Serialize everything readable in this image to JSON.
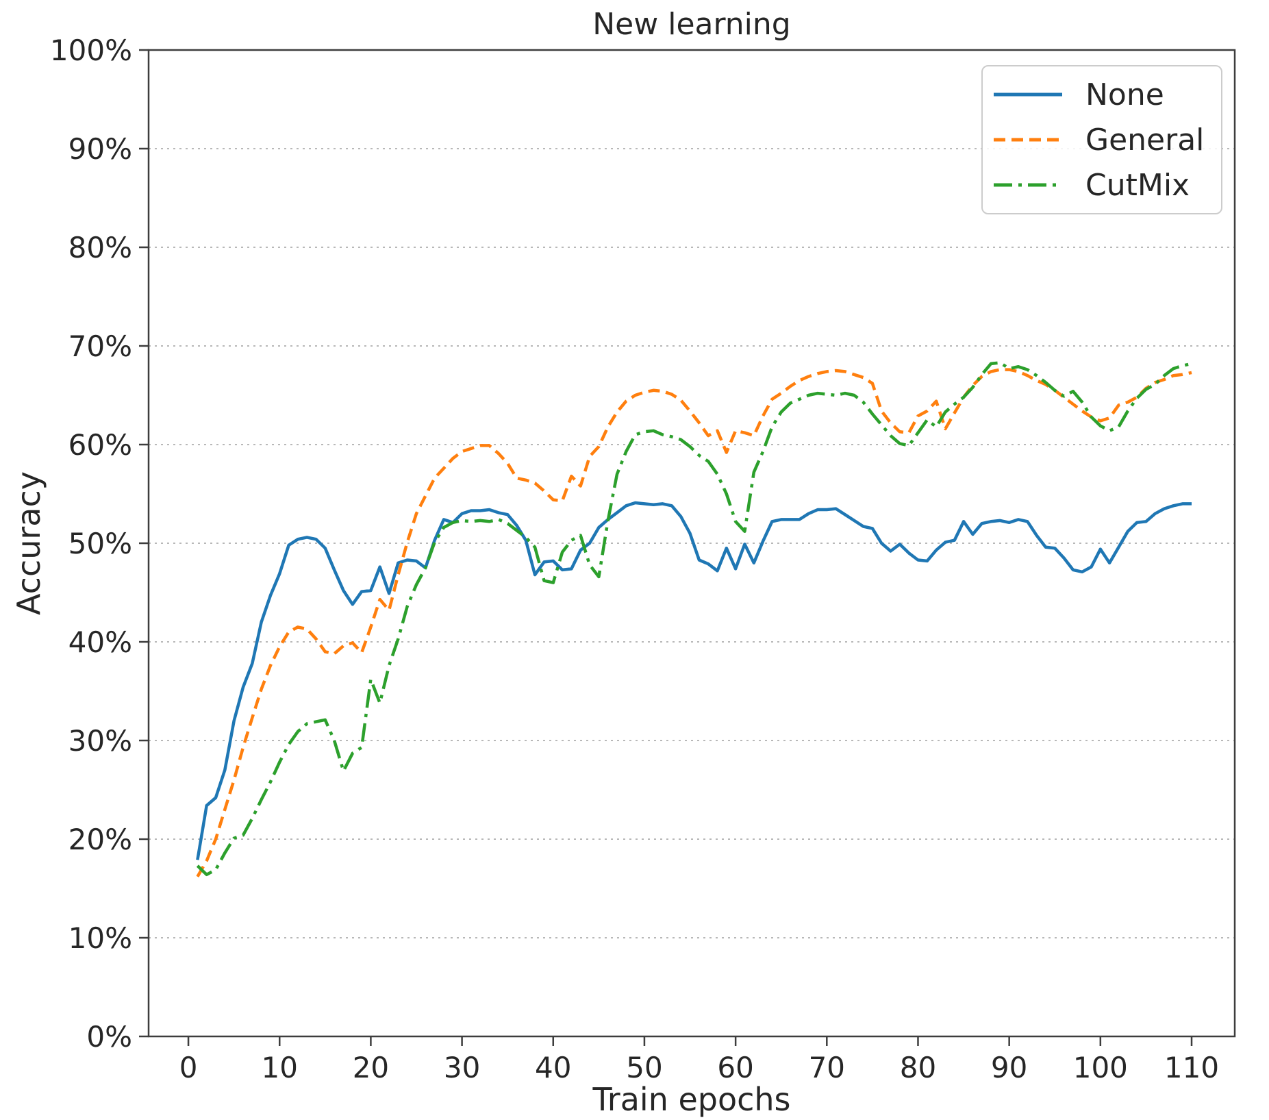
{
  "chart_data": {
    "type": "line",
    "title": "New learning",
    "xlabel": "Train epochs",
    "ylabel": "Accuracy",
    "xlim": [
      -4.36,
      114.73
    ],
    "ylim": [
      0,
      100
    ],
    "x_ticks": [
      0,
      10,
      20,
      30,
      40,
      50,
      60,
      70,
      80,
      90,
      100,
      110
    ],
    "x_tick_labels": [
      "0",
      "10",
      "20",
      "30",
      "40",
      "50",
      "60",
      "70",
      "80",
      "90",
      "100",
      "110"
    ],
    "y_ticks": [
      0,
      10,
      20,
      30,
      40,
      50,
      60,
      70,
      80,
      90,
      100
    ],
    "y_tick_labels": [
      "0%",
      "10%",
      "20%",
      "30%",
      "40%",
      "50%",
      "60%",
      "70%",
      "80%",
      "90%",
      "100%"
    ],
    "grid": "horizontal-dotted",
    "grid_color": "#b8b8b8",
    "axis_color": "#3d3d3d",
    "text_color": "#262626",
    "legend_position": "top-right",
    "epochs": [
      1,
      2,
      3,
      4,
      5,
      6,
      7,
      8,
      9,
      10,
      11,
      12,
      13,
      14,
      15,
      16,
      17,
      18,
      19,
      20,
      21,
      22,
      23,
      24,
      25,
      26,
      27,
      28,
      29,
      30,
      31,
      32,
      33,
      34,
      35,
      36,
      37,
      38,
      39,
      40,
      41,
      42,
      43,
      44,
      45,
      46,
      47,
      48,
      49,
      50,
      51,
      52,
      53,
      54,
      55,
      56,
      57,
      58,
      59,
      60,
      61,
      62,
      63,
      64,
      65,
      66,
      67,
      68,
      69,
      70,
      71,
      72,
      73,
      74,
      75,
      76,
      77,
      78,
      79,
      80,
      81,
      82,
      83,
      84,
      85,
      86,
      87,
      88,
      89,
      90,
      91,
      92,
      93,
      94,
      95,
      96,
      97,
      98,
      99,
      100,
      101,
      102,
      103,
      104,
      105,
      106,
      107,
      108,
      109,
      110
    ],
    "series": [
      {
        "name": "None",
        "color": "#1f77b4",
        "style": "solid",
        "values": [
          17.9,
          23.4,
          24.2,
          27.0,
          32.0,
          35.4,
          37.8,
          42.0,
          44.7,
          46.9,
          49.8,
          50.4,
          50.6,
          50.4,
          49.5,
          47.3,
          45.2,
          43.8,
          45.1,
          45.2,
          47.6,
          44.9,
          48.0,
          48.3,
          48.2,
          47.5,
          50.3,
          52.4,
          52.1,
          53.0,
          53.3,
          53.3,
          53.4,
          53.1,
          52.9,
          51.8,
          50.3,
          46.8,
          48.1,
          48.2,
          47.3,
          47.4,
          49.3,
          50.0,
          51.6,
          52.4,
          53.1,
          53.8,
          54.1,
          54.0,
          53.9,
          54.0,
          53.8,
          52.7,
          51.0,
          48.3,
          47.9,
          47.2,
          49.5,
          47.4,
          49.9,
          48.0,
          50.2,
          52.2,
          52.4,
          52.4,
          52.4,
          53.0,
          53.4,
          53.4,
          53.5,
          52.9,
          52.3,
          51.7,
          51.5,
          50.0,
          49.2,
          49.9,
          49.0,
          48.3,
          48.2,
          49.3,
          50.1,
          50.3,
          52.2,
          50.9,
          52.0,
          52.2,
          52.3,
          52.1,
          52.4,
          52.2,
          50.8,
          49.6,
          49.5,
          48.5,
          47.3,
          47.1,
          47.6,
          49.4,
          48.0,
          49.6,
          51.2,
          52.1,
          52.2,
          53.0,
          53.5,
          53.8,
          54.0,
          54.0
        ]
      },
      {
        "name": "General",
        "color": "#ff7f0e",
        "style": "dashed",
        "values": [
          16.2,
          17.8,
          20.0,
          23.0,
          26.0,
          29.3,
          32.3,
          35.2,
          37.6,
          39.5,
          41.0,
          41.5,
          41.3,
          40.3,
          39.0,
          38.8,
          39.6,
          39.9,
          38.9,
          41.5,
          44.3,
          43.2,
          46.8,
          50.1,
          53.0,
          54.8,
          56.6,
          57.6,
          58.6,
          59.3,
          59.6,
          59.9,
          59.9,
          59.1,
          58.1,
          56.6,
          56.4,
          56.1,
          55.3,
          54.4,
          54.3,
          56.8,
          55.8,
          58.8,
          59.8,
          61.8,
          63.3,
          64.4,
          65.0,
          65.3,
          65.5,
          65.4,
          65.1,
          64.5,
          63.4,
          62.2,
          60.9,
          61.4,
          59.2,
          61.4,
          61.2,
          60.9,
          62.9,
          64.6,
          65.2,
          65.9,
          66.5,
          66.9,
          67.2,
          67.4,
          67.5,
          67.4,
          67.1,
          66.8,
          66.2,
          63.4,
          62.2,
          61.3,
          61.2,
          62.9,
          63.4,
          64.4,
          61.6,
          63.2,
          64.8,
          66.0,
          66.9,
          67.4,
          67.6,
          67.6,
          67.4,
          67.0,
          66.5,
          66.1,
          65.5,
          64.8,
          64.1,
          63.4,
          62.8,
          62.4,
          62.7,
          64.0,
          64.3,
          64.8,
          65.7,
          66.3,
          66.6,
          67.0,
          67.1,
          67.3
        ]
      },
      {
        "name": "CutMix",
        "color": "#2ca02c",
        "style": "dashdot",
        "values": [
          17.3,
          16.4,
          16.9,
          18.6,
          20.1,
          20.4,
          22.1,
          24.0,
          25.8,
          27.8,
          29.6,
          30.9,
          31.7,
          31.9,
          32.1,
          30.0,
          26.9,
          28.7,
          29.3,
          36.2,
          33.8,
          37.6,
          40.3,
          43.6,
          45.8,
          47.5,
          50.1,
          51.6,
          52.1,
          52.3,
          52.2,
          52.3,
          52.2,
          52.4,
          52.0,
          51.3,
          50.6,
          49.6,
          46.2,
          46.0,
          49.1,
          50.3,
          50.8,
          47.8,
          46.6,
          52.3,
          57.0,
          59.3,
          61.0,
          61.3,
          61.4,
          61.0,
          60.8,
          60.5,
          59.8,
          58.9,
          58.3,
          57.0,
          55.0,
          52.2,
          51.2,
          57.2,
          59.3,
          61.8,
          63.3,
          64.2,
          64.6,
          65.0,
          65.2,
          65.1,
          65.0,
          65.2,
          65.0,
          64.3,
          63.1,
          62.0,
          60.9,
          60.1,
          59.9,
          61.2,
          62.5,
          61.8,
          63.3,
          64.1,
          64.8,
          65.8,
          67.1,
          68.2,
          68.3,
          67.7,
          67.9,
          67.6,
          67.0,
          66.3,
          65.5,
          64.9,
          65.4,
          64.3,
          62.8,
          61.9,
          61.4,
          61.8,
          63.4,
          64.7,
          65.6,
          66.1,
          67.0,
          67.7,
          68.0,
          68.2
        ]
      }
    ]
  }
}
